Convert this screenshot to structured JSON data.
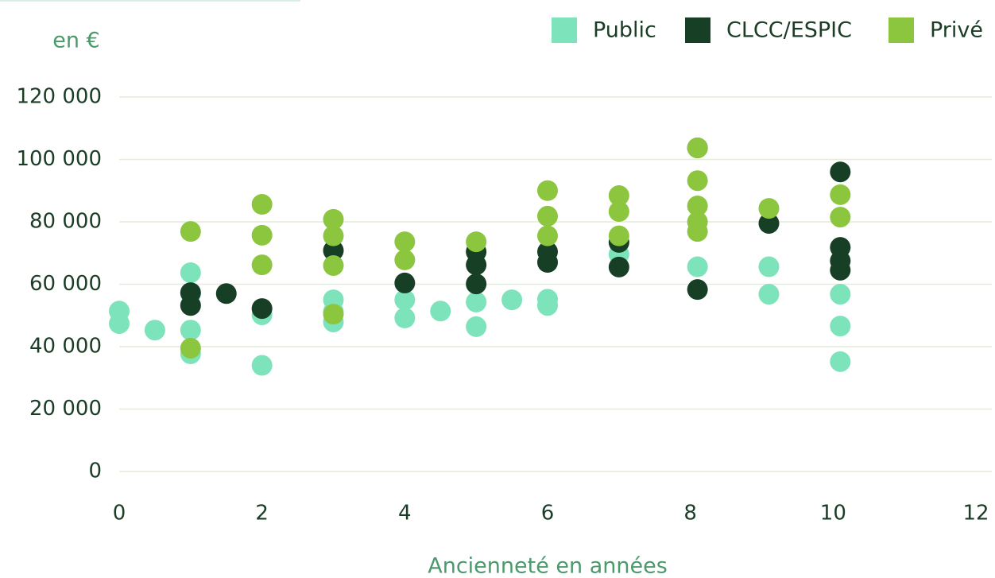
{
  "chart_data": {
    "type": "scatter",
    "y_axis_label": "en €",
    "x_axis_label": "Ancienneté en années",
    "xlim": [
      0,
      12
    ],
    "xticks": [
      0,
      2,
      4,
      6,
      8,
      10,
      12
    ],
    "ylim": [
      0,
      120000
    ],
    "yticks": [
      0,
      {
        "value": 20000,
        "label": "20 000"
      },
      {
        "value": 40000,
        "label": "40 000"
      },
      {
        "value": 60000,
        "label": "60 000"
      },
      {
        "value": 80000,
        "label": "80 000"
      },
      {
        "value": 100000,
        "label": "100 000"
      },
      {
        "value": 120000,
        "label": "120 000"
      }
    ],
    "grid": true,
    "legend": "top-right",
    "series": [
      {
        "name": "Public",
        "color": "#7de3bb",
        "x": [
          0,
          0,
          0.5,
          1,
          1,
          1,
          1,
          2,
          2,
          3,
          3,
          3,
          4,
          4,
          4.5,
          5,
          5,
          5.5,
          6,
          6,
          7,
          8.1,
          9.1,
          9.1,
          10.1,
          10.1,
          10.1
        ],
        "values": [
          51400,
          47400,
          45300,
          63700,
          57000,
          45300,
          37700,
          50200,
          34000,
          55000,
          51200,
          47900,
          55000,
          49200,
          51400,
          54300,
          46400,
          55000,
          55200,
          53200,
          69600,
          65600,
          65600,
          56800,
          56800,
          46600,
          35200
        ]
      },
      {
        "name": "CLCC/ESPIC",
        "color": "#173f25",
        "x": [
          1,
          1,
          1.5,
          2,
          3,
          4,
          5,
          5,
          5,
          6,
          6,
          7,
          7,
          8.1,
          8.1,
          9.1,
          10.1,
          10.1,
          10.1,
          10.1
        ],
        "values": [
          57300,
          53200,
          57000,
          52200,
          70800,
          60400,
          70400,
          66200,
          60100,
          70400,
          67000,
          73400,
          65500,
          103700,
          58300,
          79500,
          96000,
          71800,
          67500,
          64500
        ]
      },
      {
        "name": "Privé",
        "color": "#8cc63f",
        "x": [
          1,
          1,
          2,
          2,
          2,
          3,
          3,
          3,
          3,
          4,
          4,
          5,
          6,
          6,
          6,
          7,
          7,
          7,
          8.1,
          8.1,
          8.1,
          8.1,
          8.1,
          9.1,
          10.1,
          10.1
        ],
        "values": [
          76900,
          39500,
          85600,
          75700,
          66200,
          80800,
          75500,
          66000,
          50400,
          73600,
          67800,
          73600,
          90000,
          81800,
          75500,
          88400,
          83300,
          75500,
          103700,
          93200,
          85100,
          80000,
          76900,
          84300,
          88700,
          81500
        ]
      }
    ]
  }
}
